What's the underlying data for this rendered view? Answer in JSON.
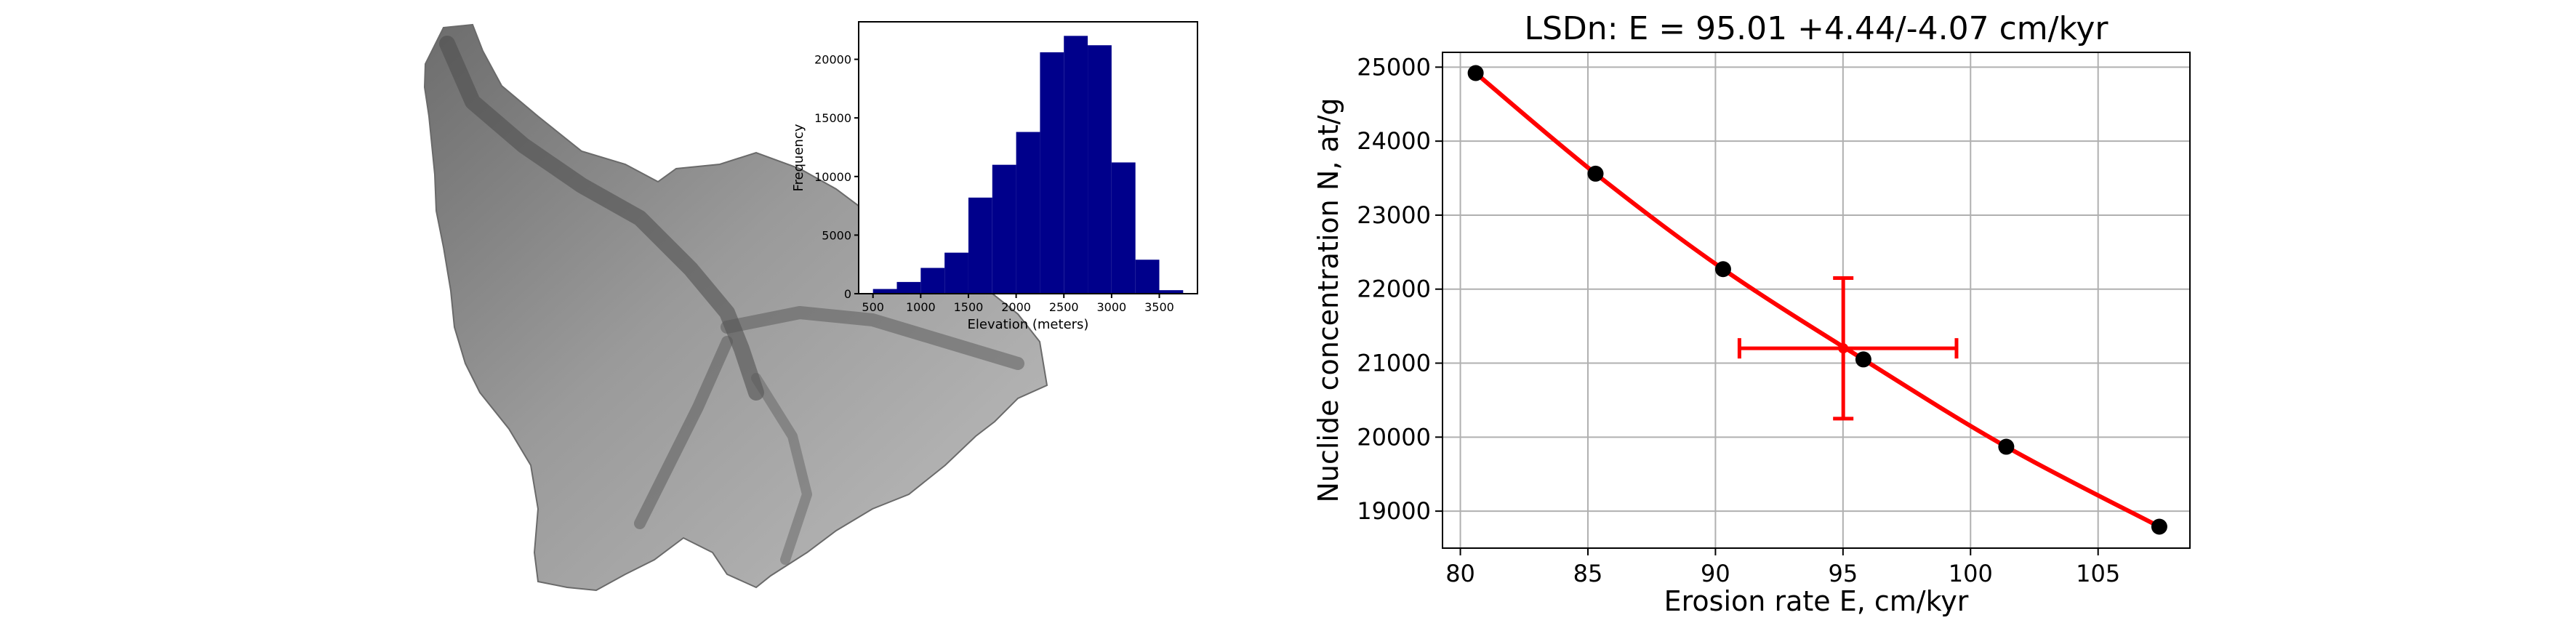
{
  "basin_map": {
    "description_icon": "shaded-relief-basin-map"
  },
  "chart_data": [
    {
      "type": "bar",
      "title": "",
      "xlabel": "Elevation (meters)",
      "ylabel": "Frequency",
      "bar_color": "#00008b",
      "bins": [
        {
          "x0": 500,
          "x1": 750,
          "value": 400
        },
        {
          "x0": 750,
          "x1": 1000,
          "value": 1000
        },
        {
          "x0": 1000,
          "x1": 1250,
          "value": 2200
        },
        {
          "x0": 1250,
          "x1": 1500,
          "value": 3500
        },
        {
          "x0": 1500,
          "x1": 1750,
          "value": 8200
        },
        {
          "x0": 1750,
          "x1": 2000,
          "value": 11000
        },
        {
          "x0": 2000,
          "x1": 2250,
          "value": 13800
        },
        {
          "x0": 2250,
          "x1": 2500,
          "value": 20600
        },
        {
          "x0": 2500,
          "x1": 2750,
          "value": 22000
        },
        {
          "x0": 2750,
          "x1": 3000,
          "value": 21200
        },
        {
          "x0": 3000,
          "x1": 3250,
          "value": 11200
        },
        {
          "x0": 3250,
          "x1": 3500,
          "value": 2900
        },
        {
          "x0": 3500,
          "x1": 3750,
          "value": 300
        }
      ],
      "xlim": [
        350,
        3900
      ],
      "ylim": [
        0,
        23200
      ],
      "xticks": [
        500,
        1000,
        1500,
        2000,
        2500,
        3000,
        3500
      ],
      "yticks": [
        0,
        5000,
        10000,
        15000,
        20000
      ],
      "xtick_labels": [
        "500",
        "1000",
        "1500",
        "2000",
        "2500",
        "3000",
        "3500"
      ],
      "ytick_labels": [
        "0",
        "5000",
        "10000",
        "15000",
        "20000"
      ]
    },
    {
      "type": "line",
      "title": "LSDn: E = 95.01 +4.44/-4.07 cm/kyr",
      "xlabel": "Erosion rate E, cm/kyr",
      "ylabel": "Nuclide concentration N, at/g",
      "line_color": "#ff0000",
      "marker_color": "#000000",
      "grid": true,
      "xlim": [
        79.3,
        108.6
      ],
      "ylim": [
        18500,
        25200
      ],
      "xticks": [
        80,
        85,
        90,
        95,
        100,
        105
      ],
      "yticks": [
        19000,
        20000,
        21000,
        22000,
        23000,
        24000,
        25000
      ],
      "xtick_labels": [
        "80",
        "85",
        "90",
        "95",
        "100",
        "105"
      ],
      "ytick_labels": [
        "19000",
        "20000",
        "21000",
        "22000",
        "23000",
        "24000",
        "25000"
      ],
      "points": [
        {
          "x": 80.6,
          "y": 24920
        },
        {
          "x": 85.3,
          "y": 23560
        },
        {
          "x": 90.3,
          "y": 22270
        },
        {
          "x": 95.8,
          "y": 21050
        },
        {
          "x": 101.4,
          "y": 19870
        },
        {
          "x": 107.4,
          "y": 18790
        }
      ],
      "estimate": {
        "x": 95.01,
        "y": 21200,
        "x_err_plus": 4.44,
        "x_err_minus": 4.07,
        "y_err_plus": 950,
        "y_err_minus": 950,
        "color": "#ff0000"
      }
    }
  ]
}
